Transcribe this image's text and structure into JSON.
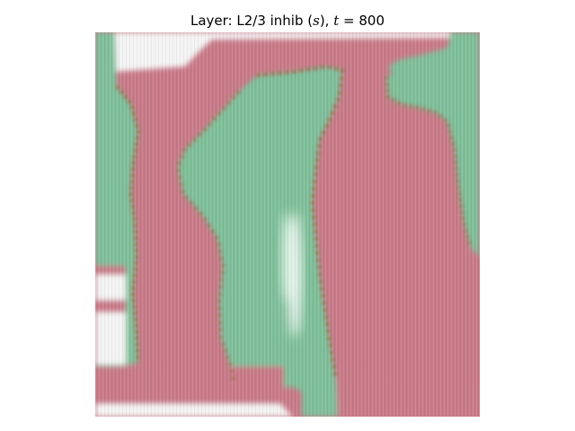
{
  "title": {
    "prefix": "Layer: L2/3 inhib (",
    "var_s": "s",
    "mid": "), ",
    "var_t": "t",
    "equals": " = ",
    "value": "800"
  },
  "image": {
    "description_name": "neural-activity-map",
    "colors": {
      "pink": "#c97a88",
      "green": "#7fbf9a",
      "white": "#f4f4f4",
      "edge": "#7a5a2a"
    }
  }
}
